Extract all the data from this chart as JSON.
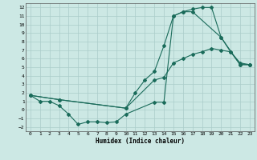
{
  "xlabel": "Humidex (Indice chaleur)",
  "xlim": [
    -0.5,
    23.5
  ],
  "ylim": [
    -2.5,
    12.5
  ],
  "xticks": [
    0,
    1,
    2,
    3,
    4,
    5,
    6,
    7,
    8,
    9,
    10,
    11,
    12,
    13,
    14,
    15,
    16,
    17,
    18,
    19,
    20,
    21,
    22,
    23
  ],
  "yticks": [
    -2,
    -1,
    0,
    1,
    2,
    3,
    4,
    5,
    6,
    7,
    8,
    9,
    10,
    11,
    12
  ],
  "bg_color": "#cce8e4",
  "grid_color": "#aaccca",
  "line_color": "#1a6b5a",
  "line1_x": [
    0,
    1,
    2,
    3,
    4,
    5,
    6,
    7,
    8,
    9,
    10,
    13,
    14,
    15,
    16,
    17,
    20,
    21,
    22,
    23
  ],
  "line1_y": [
    1.7,
    1.0,
    1.0,
    0.5,
    -0.5,
    -1.7,
    -1.4,
    -1.4,
    -1.5,
    -1.4,
    -0.5,
    0.9,
    0.9,
    11.0,
    11.5,
    11.5,
    8.5,
    6.8,
    5.5,
    5.3
  ],
  "line2_x": [
    0,
    3,
    10,
    13,
    14,
    15,
    16,
    17,
    18,
    19,
    20,
    21,
    22,
    23
  ],
  "line2_y": [
    1.7,
    1.2,
    0.2,
    3.5,
    3.8,
    5.5,
    6.0,
    6.5,
    6.8,
    7.2,
    7.0,
    6.8,
    5.3,
    5.3
  ],
  "line3_x": [
    0,
    3,
    10,
    11,
    12,
    13,
    14,
    15,
    16,
    17,
    18,
    19,
    20,
    22,
    23
  ],
  "line3_y": [
    1.7,
    1.2,
    0.2,
    2.0,
    3.5,
    4.5,
    7.5,
    11.0,
    11.5,
    11.8,
    12.0,
    12.0,
    8.5,
    5.3,
    5.3
  ]
}
